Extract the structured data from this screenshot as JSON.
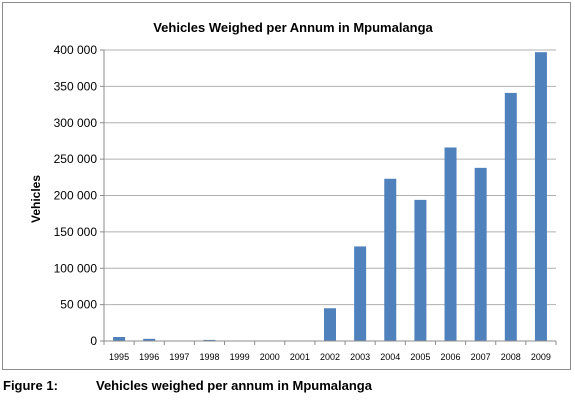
{
  "caption": {
    "number": "Figure 1:",
    "text": "Vehicles weighed per annum in Mpumalanga"
  },
  "chart_data": {
    "type": "bar",
    "title": "Vehicles Weighed per Annum in Mpumalanga",
    "xlabel": "",
    "ylabel": "Vehicles",
    "categories": [
      "1995",
      "1996",
      "1997",
      "1998",
      "1999",
      "2000",
      "2001",
      "2002",
      "2003",
      "2004",
      "2005",
      "2006",
      "2007",
      "2008",
      "2009"
    ],
    "values": [
      5500,
      3000,
      500,
      1500,
      300,
      300,
      300,
      45000,
      130000,
      223000,
      194000,
      266000,
      238000,
      341000,
      397000
    ],
    "ylim": [
      0,
      400000
    ],
    "yticks": [
      0,
      50000,
      100000,
      150000,
      200000,
      250000,
      300000,
      350000,
      400000
    ],
    "ytick_labels": [
      "0",
      "50 000",
      "100 000",
      "150 000",
      "200 000",
      "250 000",
      "300 000",
      "350 000",
      "400 000"
    ],
    "bar_color": "#4f81bd",
    "grid": true,
    "legend": "none"
  }
}
